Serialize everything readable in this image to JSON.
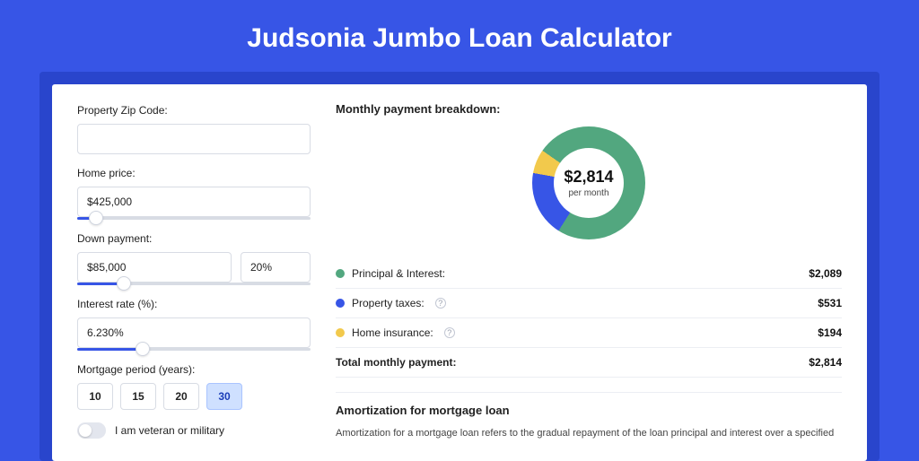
{
  "title": "Judsonia Jumbo Loan Calculator",
  "colors": {
    "page_bg": "#3755e6",
    "frame_bg": "#2945cc",
    "card_bg": "#ffffff",
    "accent": "#3755e6",
    "border": "#d8dce4",
    "text": "#222222"
  },
  "form": {
    "zip": {
      "label": "Property Zip Code:",
      "value": ""
    },
    "home_price": {
      "label": "Home price:",
      "value": "$425,000",
      "slider_pct": 8
    },
    "down_payment": {
      "label": "Down payment:",
      "amount": "$85,000",
      "percent": "20%",
      "slider_pct": 20
    },
    "interest_rate": {
      "label": "Interest rate (%):",
      "value": "6.230%",
      "slider_pct": 28
    },
    "mortgage_period": {
      "label": "Mortgage period (years):",
      "options": [
        "10",
        "15",
        "20",
        "30"
      ],
      "selected": "30"
    },
    "veteran": {
      "label": "I am veteran or military",
      "checked": false
    }
  },
  "breakdown": {
    "title": "Monthly payment breakdown:",
    "donut": {
      "amount": "$2,814",
      "sub": "per month",
      "segments": [
        {
          "label": "Principal & Interest",
          "value": 2089,
          "color": "#52a77f"
        },
        {
          "label": "Property taxes",
          "value": 531,
          "color": "#3755e6"
        },
        {
          "label": "Home insurance",
          "value": 194,
          "color": "#f2c94c"
        }
      ]
    },
    "rows": [
      {
        "label": "Principal & Interest:",
        "value": "$2,089",
        "color": "#52a77f",
        "info": false
      },
      {
        "label": "Property taxes:",
        "value": "$531",
        "color": "#3755e6",
        "info": true
      },
      {
        "label": "Home insurance:",
        "value": "$194",
        "color": "#f2c94c",
        "info": true
      }
    ],
    "total": {
      "label": "Total monthly payment:",
      "value": "$2,814"
    }
  },
  "amortization": {
    "title": "Amortization for mortgage loan",
    "body": "Amortization for a mortgage loan refers to the gradual repayment of the loan principal and interest over a specified"
  }
}
